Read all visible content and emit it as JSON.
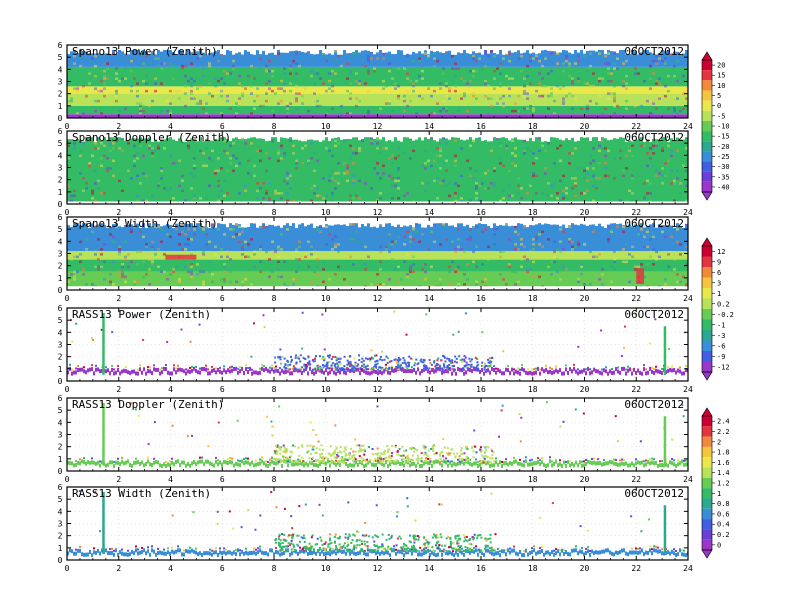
{
  "date": "06OCT2012",
  "x_axis": {
    "ticks": [
      "0",
      "2",
      "4",
      "6",
      "8",
      "10",
      "12",
      "14",
      "16",
      "18",
      "20",
      "22",
      "24"
    ],
    "range": [
      0,
      24
    ]
  },
  "y_axis": {
    "ticks": [
      "0",
      "1",
      "2",
      "3",
      "4",
      "5",
      "6"
    ],
    "range": [
      0,
      6
    ]
  },
  "colorbars": [
    {
      "name": "spano-power-colorbar",
      "labels": [
        "20",
        "15",
        "10",
        "5",
        "0",
        "-5",
        "-10",
        "-15",
        "-20",
        "-25",
        "-30",
        "-35",
        "-40"
      ],
      "colors": [
        "#cc0033",
        "#e3343f",
        "#f08a3a",
        "#f5c540",
        "#e8e84a",
        "#b8e25a",
        "#66cc55",
        "#33bb66",
        "#2aa890",
        "#3a8ed8",
        "#3f5ee0",
        "#6a3fd6",
        "#9a36c8"
      ]
    },
    {
      "name": "spano-width-colorbar",
      "labels": [
        "12",
        "9",
        "6",
        "3",
        "1",
        "0.2",
        "-0.2",
        "-1",
        "-3",
        "-6",
        "-9",
        "-12"
      ],
      "colors": [
        "#cc0033",
        "#e3343f",
        "#f08a3a",
        "#f5c540",
        "#e8e84a",
        "#b8e25a",
        "#66cc55",
        "#33bb66",
        "#2aa890",
        "#3a8ed8",
        "#3f5ee0",
        "#9a36c8"
      ]
    },
    {
      "name": "rass-doppler-colorbar",
      "labels": [
        "2.4",
        "2.2",
        "2",
        "1.8",
        "1.6",
        "1.4",
        "1.2",
        "1",
        "0.8",
        "0.6",
        "0.4",
        "0.2",
        "0"
      ],
      "colors": [
        "#cc0033",
        "#e3343f",
        "#f08a3a",
        "#f5c540",
        "#e8e84a",
        "#b8e25a",
        "#66cc55",
        "#33bb66",
        "#2aa890",
        "#3a8ed8",
        "#3f5ee0",
        "#6a3fd6",
        "#9a36c8"
      ]
    }
  ],
  "chart_data": [
    {
      "type": "heatmap",
      "title": "Spano13 Power (Zenith)",
      "date": "06OCT2012",
      "xlim": [
        0,
        24
      ],
      "ylim": [
        0,
        6
      ],
      "x_ticks": [
        0,
        2,
        4,
        6,
        8,
        10,
        12,
        14,
        16,
        18,
        20,
        22,
        24
      ],
      "y_ticks": [
        0,
        1,
        2,
        3,
        4,
        5,
        6
      ],
      "colorbar": "spano-power-colorbar",
      "coverage_height_range": [
        0.3,
        5.6
      ],
      "bands": [
        {
          "y_from": 0.0,
          "y_to": 0.3,
          "color": "#9a36c8"
        },
        {
          "y_from": 0.3,
          "y_to": 1.0,
          "color": "#33bb66"
        },
        {
          "y_from": 1.0,
          "y_to": 2.0,
          "color": "#b8e25a"
        },
        {
          "y_from": 2.0,
          "y_to": 2.6,
          "color": "#e8e84a"
        },
        {
          "y_from": 2.6,
          "y_to": 4.2,
          "color": "#33bb66"
        },
        {
          "y_from": 4.2,
          "y_to": 5.6,
          "color": "#3a8ed8"
        }
      ]
    },
    {
      "type": "heatmap",
      "title": "Spano13 Doppler (Zenith)",
      "date": "06OCT2012",
      "xlim": [
        0,
        24
      ],
      "ylim": [
        0,
        6
      ],
      "x_ticks": [
        0,
        2,
        4,
        6,
        8,
        10,
        12,
        14,
        16,
        18,
        20,
        22,
        24
      ],
      "y_ticks": [
        0,
        1,
        2,
        3,
        4,
        5,
        6
      ],
      "colorbar": "spano-power-colorbar",
      "coverage_height_range": [
        0.2,
        5.5
      ],
      "bands": [
        {
          "y_from": 0.2,
          "y_to": 5.5,
          "color": "#33bb66"
        }
      ]
    },
    {
      "type": "heatmap",
      "title": "Spano13 Width (Zenith)",
      "date": "06OCT2012",
      "xlim": [
        0,
        24
      ],
      "ylim": [
        0,
        6
      ],
      "x_ticks": [
        0,
        2,
        4,
        6,
        8,
        10,
        12,
        14,
        16,
        18,
        20,
        22,
        24
      ],
      "y_ticks": [
        0,
        1,
        2,
        3,
        4,
        5,
        6
      ],
      "colorbar": "spano-width-colorbar",
      "coverage_height_range": [
        0.3,
        5.5
      ],
      "bands": [
        {
          "y_from": 0.3,
          "y_to": 1.5,
          "color": "#66cc55"
        },
        {
          "y_from": 1.5,
          "y_to": 2.5,
          "color": "#33bb66"
        },
        {
          "y_from": 2.5,
          "y_to": 3.2,
          "color": "#b8e25a"
        },
        {
          "y_from": 3.2,
          "y_to": 5.5,
          "color": "#3a8ed8"
        }
      ],
      "hotspots": [
        {
          "x_from": 3.8,
          "x_to": 5.0,
          "y_from": 2.5,
          "y_to": 2.9,
          "color": "#e3343f"
        },
        {
          "x_from": 22.0,
          "x_to": 22.3,
          "y_from": 0.5,
          "y_to": 1.8,
          "color": "#e3343f"
        }
      ]
    },
    {
      "type": "scatter",
      "title": "RASS13 Power (Zenith)",
      "date": "06OCT2012",
      "xlim": [
        0,
        24
      ],
      "ylim": [
        0,
        6
      ],
      "x_ticks": [
        0,
        2,
        4,
        6,
        8,
        10,
        12,
        14,
        16,
        18,
        20,
        22,
        24
      ],
      "y_ticks": [
        0,
        1,
        2,
        3,
        4,
        5,
        6
      ],
      "colorbar": "spano-width-colorbar",
      "base_layer": {
        "y": 0.8,
        "color": "#9a36c8"
      },
      "spikes": [
        {
          "x": 1.4,
          "y_top": 5.6,
          "color": "#33bb66"
        },
        {
          "x": 23.1,
          "y_top": 4.5,
          "color": "#33bb66"
        }
      ],
      "cluster": {
        "x_from": 8.0,
        "x_to": 16.5,
        "y_top": 2.0,
        "color": "#3f5ee0"
      }
    },
    {
      "type": "scatter",
      "title": "RASS13 Doppler (Zenith)",
      "date": "06OCT2012",
      "xlim": [
        0,
        24
      ],
      "ylim": [
        0,
        6
      ],
      "x_ticks": [
        0,
        2,
        4,
        6,
        8,
        10,
        12,
        14,
        16,
        18,
        20,
        22,
        24
      ],
      "y_ticks": [
        0,
        1,
        2,
        3,
        4,
        5,
        6
      ],
      "colorbar": "rass-doppler-colorbar",
      "base_layer": {
        "y": 0.6,
        "color": "#66cc55"
      },
      "spikes": [
        {
          "x": 1.4,
          "y_top": 5.6,
          "color": "#66cc55"
        },
        {
          "x": 23.1,
          "y_top": 4.5,
          "color": "#66cc55"
        }
      ],
      "cluster": {
        "x_from": 8.0,
        "x_to": 16.5,
        "y_top": 2.0,
        "color": "#b8e25a"
      }
    },
    {
      "type": "scatter",
      "title": "RASS13 Width (Zenith)",
      "date": "06OCT2012",
      "xlim": [
        0,
        24
      ],
      "ylim": [
        0,
        6
      ],
      "x_ticks": [
        0,
        2,
        4,
        6,
        8,
        10,
        12,
        14,
        16,
        18,
        20,
        22,
        24
      ],
      "y_ticks": [
        0,
        1,
        2,
        3,
        4,
        5,
        6
      ],
      "colorbar": "rass-doppler-colorbar",
      "base_layer": {
        "y": 0.6,
        "color": "#3a8ed8"
      },
      "spikes": [
        {
          "x": 1.4,
          "y_top": 5.6,
          "color": "#2aa890"
        },
        {
          "x": 23.1,
          "y_top": 4.5,
          "color": "#2aa890"
        }
      ],
      "cluster": {
        "x_from": 8.0,
        "x_to": 16.5,
        "y_top": 2.0,
        "color": "#33bb66"
      }
    }
  ]
}
